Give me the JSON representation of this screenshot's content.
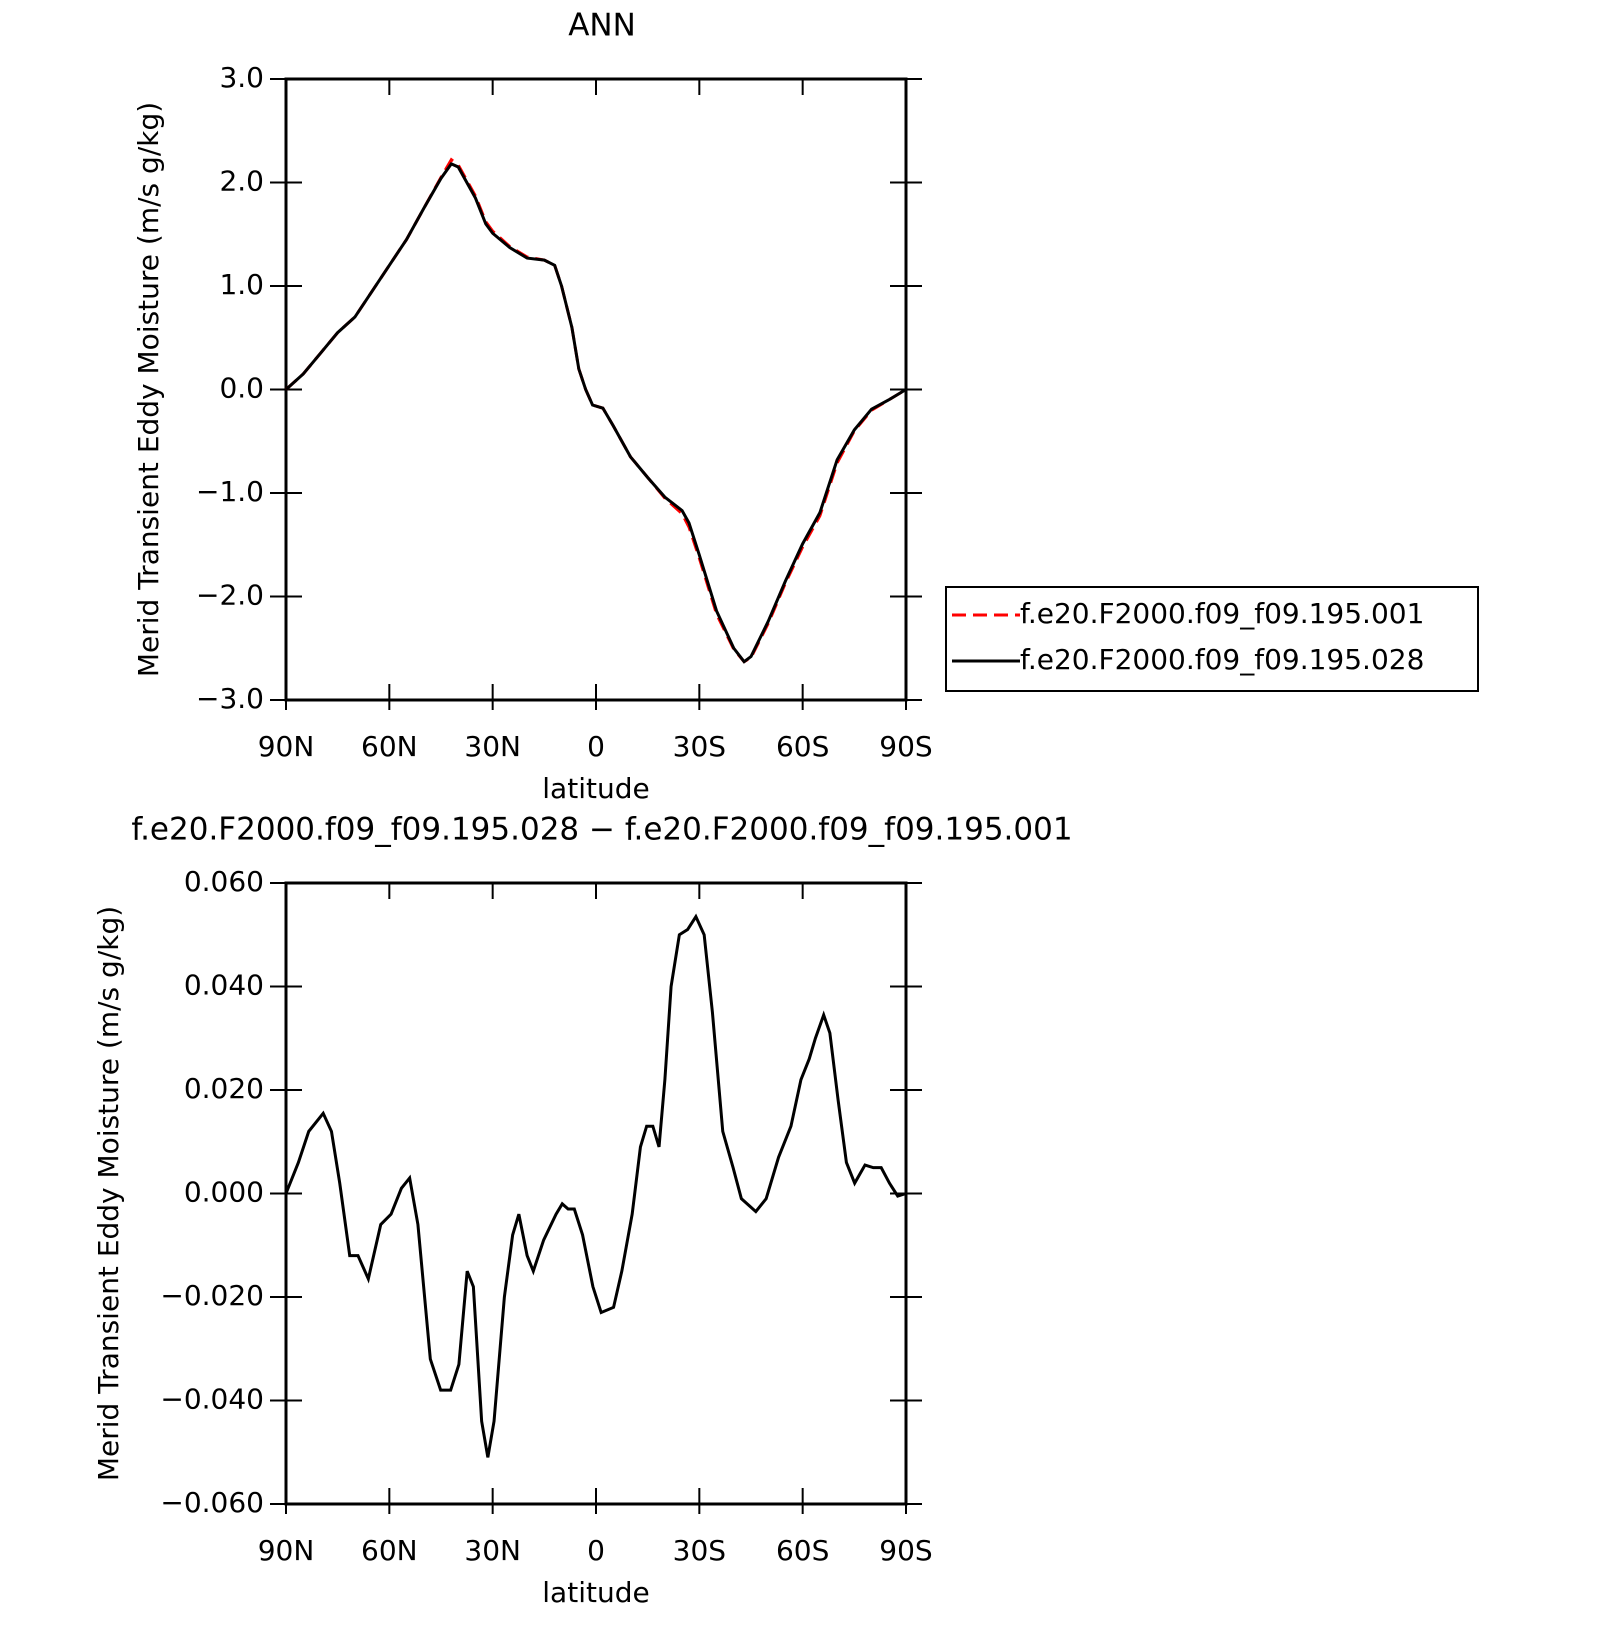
{
  "chart_data": [
    {
      "type": "line",
      "title": "ANN",
      "xlabel": "latitude",
      "ylabel": "Merid Transient Eddy Moisture (m/s g/kg)",
      "xlim": [
        90,
        -90
      ],
      "xticks": [
        {
          "value": 90,
          "label": "90N"
        },
        {
          "value": 60,
          "label": "60N"
        },
        {
          "value": 30,
          "label": "30N"
        },
        0,
        {
          "value": -30,
          "label": "30S"
        },
        {
          "value": -60,
          "label": "60S"
        },
        {
          "value": -90,
          "label": "90S"
        }
      ],
      "ylim": [
        -3,
        3
      ],
      "yticks": [
        {
          "value": 3,
          "label": "3.0"
        },
        {
          "value": 2,
          "label": "2.0"
        },
        {
          "value": 1,
          "label": "1.0"
        },
        {
          "value": 0,
          "label": "0.0"
        },
        {
          "value": -1,
          "label": "−1.0"
        },
        {
          "value": -2,
          "label": "−2.0"
        },
        {
          "value": -3,
          "label": "−3.0"
        }
      ],
      "legend": "right",
      "x": [
        90,
        85,
        80,
        75,
        70,
        65,
        60,
        55,
        50,
        45,
        42,
        40,
        35,
        32,
        30,
        25,
        20,
        15,
        12,
        10,
        7,
        5,
        3,
        1,
        -2,
        -5,
        -10,
        -15,
        -20,
        -25,
        -27,
        -30,
        -35,
        -40,
        -43,
        -45,
        -50,
        -55,
        -60,
        -65,
        -70,
        -75,
        -80,
        -85,
        -90
      ],
      "series": [
        {
          "name": "f.e20.F2000.f09_f09.195.001",
          "color": "#ff0000",
          "style": "dashed",
          "values": [
            0.0,
            0.15,
            0.35,
            0.55,
            0.7,
            0.95,
            1.2,
            1.45,
            1.75,
            2.05,
            2.22,
            2.17,
            1.87,
            1.62,
            1.53,
            1.38,
            1.28,
            1.25,
            1.2,
            1.0,
            0.6,
            0.2,
            0.0,
            -0.15,
            -0.18,
            -0.35,
            -0.65,
            -0.85,
            -1.05,
            -1.2,
            -1.33,
            -1.63,
            -2.17,
            -2.51,
            -2.63,
            -2.59,
            -2.26,
            -1.87,
            -1.52,
            -1.22,
            -0.71,
            -0.4,
            -0.2,
            -0.1,
            0.0
          ]
        },
        {
          "name": "f.e20.F2000.f09_f09.195.028",
          "color": "#000000",
          "style": "solid",
          "values": [
            0.0,
            0.15,
            0.35,
            0.55,
            0.7,
            0.95,
            1.2,
            1.45,
            1.75,
            2.04,
            2.18,
            2.15,
            1.85,
            1.6,
            1.51,
            1.37,
            1.27,
            1.25,
            1.2,
            1.0,
            0.6,
            0.2,
            0.0,
            -0.15,
            -0.18,
            -0.35,
            -0.65,
            -0.85,
            -1.04,
            -1.17,
            -1.29,
            -1.6,
            -2.14,
            -2.5,
            -2.63,
            -2.58,
            -2.24,
            -1.85,
            -1.49,
            -1.19,
            -0.68,
            -0.39,
            -0.19,
            -0.1,
            0.0
          ]
        }
      ]
    },
    {
      "type": "line",
      "title": "f.e20.F2000.f09_f09.195.028 − f.e20.F2000.f09_f09.195.001",
      "xlabel": "latitude",
      "ylabel": "Merid Transient Eddy Moisture (m/s g/kg)",
      "xlim": [
        90,
        -90
      ],
      "xticks": [
        {
          "value": 90,
          "label": "90N"
        },
        {
          "value": 60,
          "label": "60N"
        },
        {
          "value": 30,
          "label": "30N"
        },
        0,
        {
          "value": -30,
          "label": "30S"
        },
        {
          "value": -60,
          "label": "60S"
        },
        {
          "value": -90,
          "label": "90S"
        }
      ],
      "ylim": [
        -0.06,
        0.06
      ],
      "yticks": [
        {
          "value": 0.06,
          "label": "0.060"
        },
        {
          "value": 0.04,
          "label": "0.040"
        },
        {
          "value": 0.02,
          "label": "0.020"
        },
        {
          "value": 0,
          "label": "0.000"
        },
        {
          "value": -0.02,
          "label": "−0.020"
        },
        {
          "value": -0.04,
          "label": "−0.040"
        },
        {
          "value": -0.06,
          "label": "−0.060"
        }
      ],
      "x": [
        90,
        86.4,
        83.4,
        79.2,
        76.8,
        74.4,
        71.5,
        69.1,
        66.1,
        62.5,
        59.5,
        56.5,
        54.1,
        51.7,
        48.1,
        45.1,
        42.2,
        39.8,
        37.4,
        35.6,
        33.2,
        31.4,
        29.6,
        26.6,
        24.2,
        22.4,
        20.0,
        18.2,
        15.2,
        11.6,
        9.8,
        8.1,
        6.3,
        3.9,
        0.9,
        -1.5,
        -5.1,
        -7.5,
        -10.5,
        -12.9,
        -14.7,
        -16.5,
        -18.3,
        -20.0,
        -21.8,
        -24.2,
        -26.6,
        -29.0,
        -31.4,
        -33.8,
        -36.8,
        -39.8,
        -42.2,
        -46.4,
        -49.4,
        -53.0,
        -56.6,
        -59.5,
        -61.9,
        -63.7,
        -66.1,
        -67.9,
        -70.3,
        -72.7,
        -75.1,
        -78.1,
        -80.5,
        -82.8,
        -85.2,
        -87.6,
        -90
      ],
      "series": [
        {
          "color": "#000000",
          "style": "solid",
          "values": [
            0.0,
            0.006,
            0.012,
            0.0155,
            0.012,
            0.002,
            -0.012,
            -0.012,
            -0.0165,
            -0.006,
            -0.004,
            0.001,
            0.003,
            -0.006,
            -0.032,
            -0.038,
            -0.038,
            -0.033,
            -0.015,
            -0.018,
            -0.044,
            -0.051,
            -0.044,
            -0.02,
            -0.008,
            -0.004,
            -0.012,
            -0.015,
            -0.009,
            -0.004,
            -0.002,
            -0.003,
            -0.003,
            -0.008,
            -0.018,
            -0.023,
            -0.022,
            -0.015,
            -0.004,
            0.009,
            0.013,
            0.013,
            0.009,
            0.022,
            0.04,
            0.05,
            0.051,
            0.0535,
            0.05,
            0.035,
            0.012,
            0.005,
            -0.001,
            -0.0035,
            -0.001,
            0.007,
            0.013,
            0.022,
            0.026,
            0.03,
            0.0345,
            0.031,
            0.018,
            0.006,
            0.002,
            0.0055,
            0.005,
            0.005,
            0.002,
            -0.0005,
            0.0
          ]
        }
      ]
    }
  ]
}
